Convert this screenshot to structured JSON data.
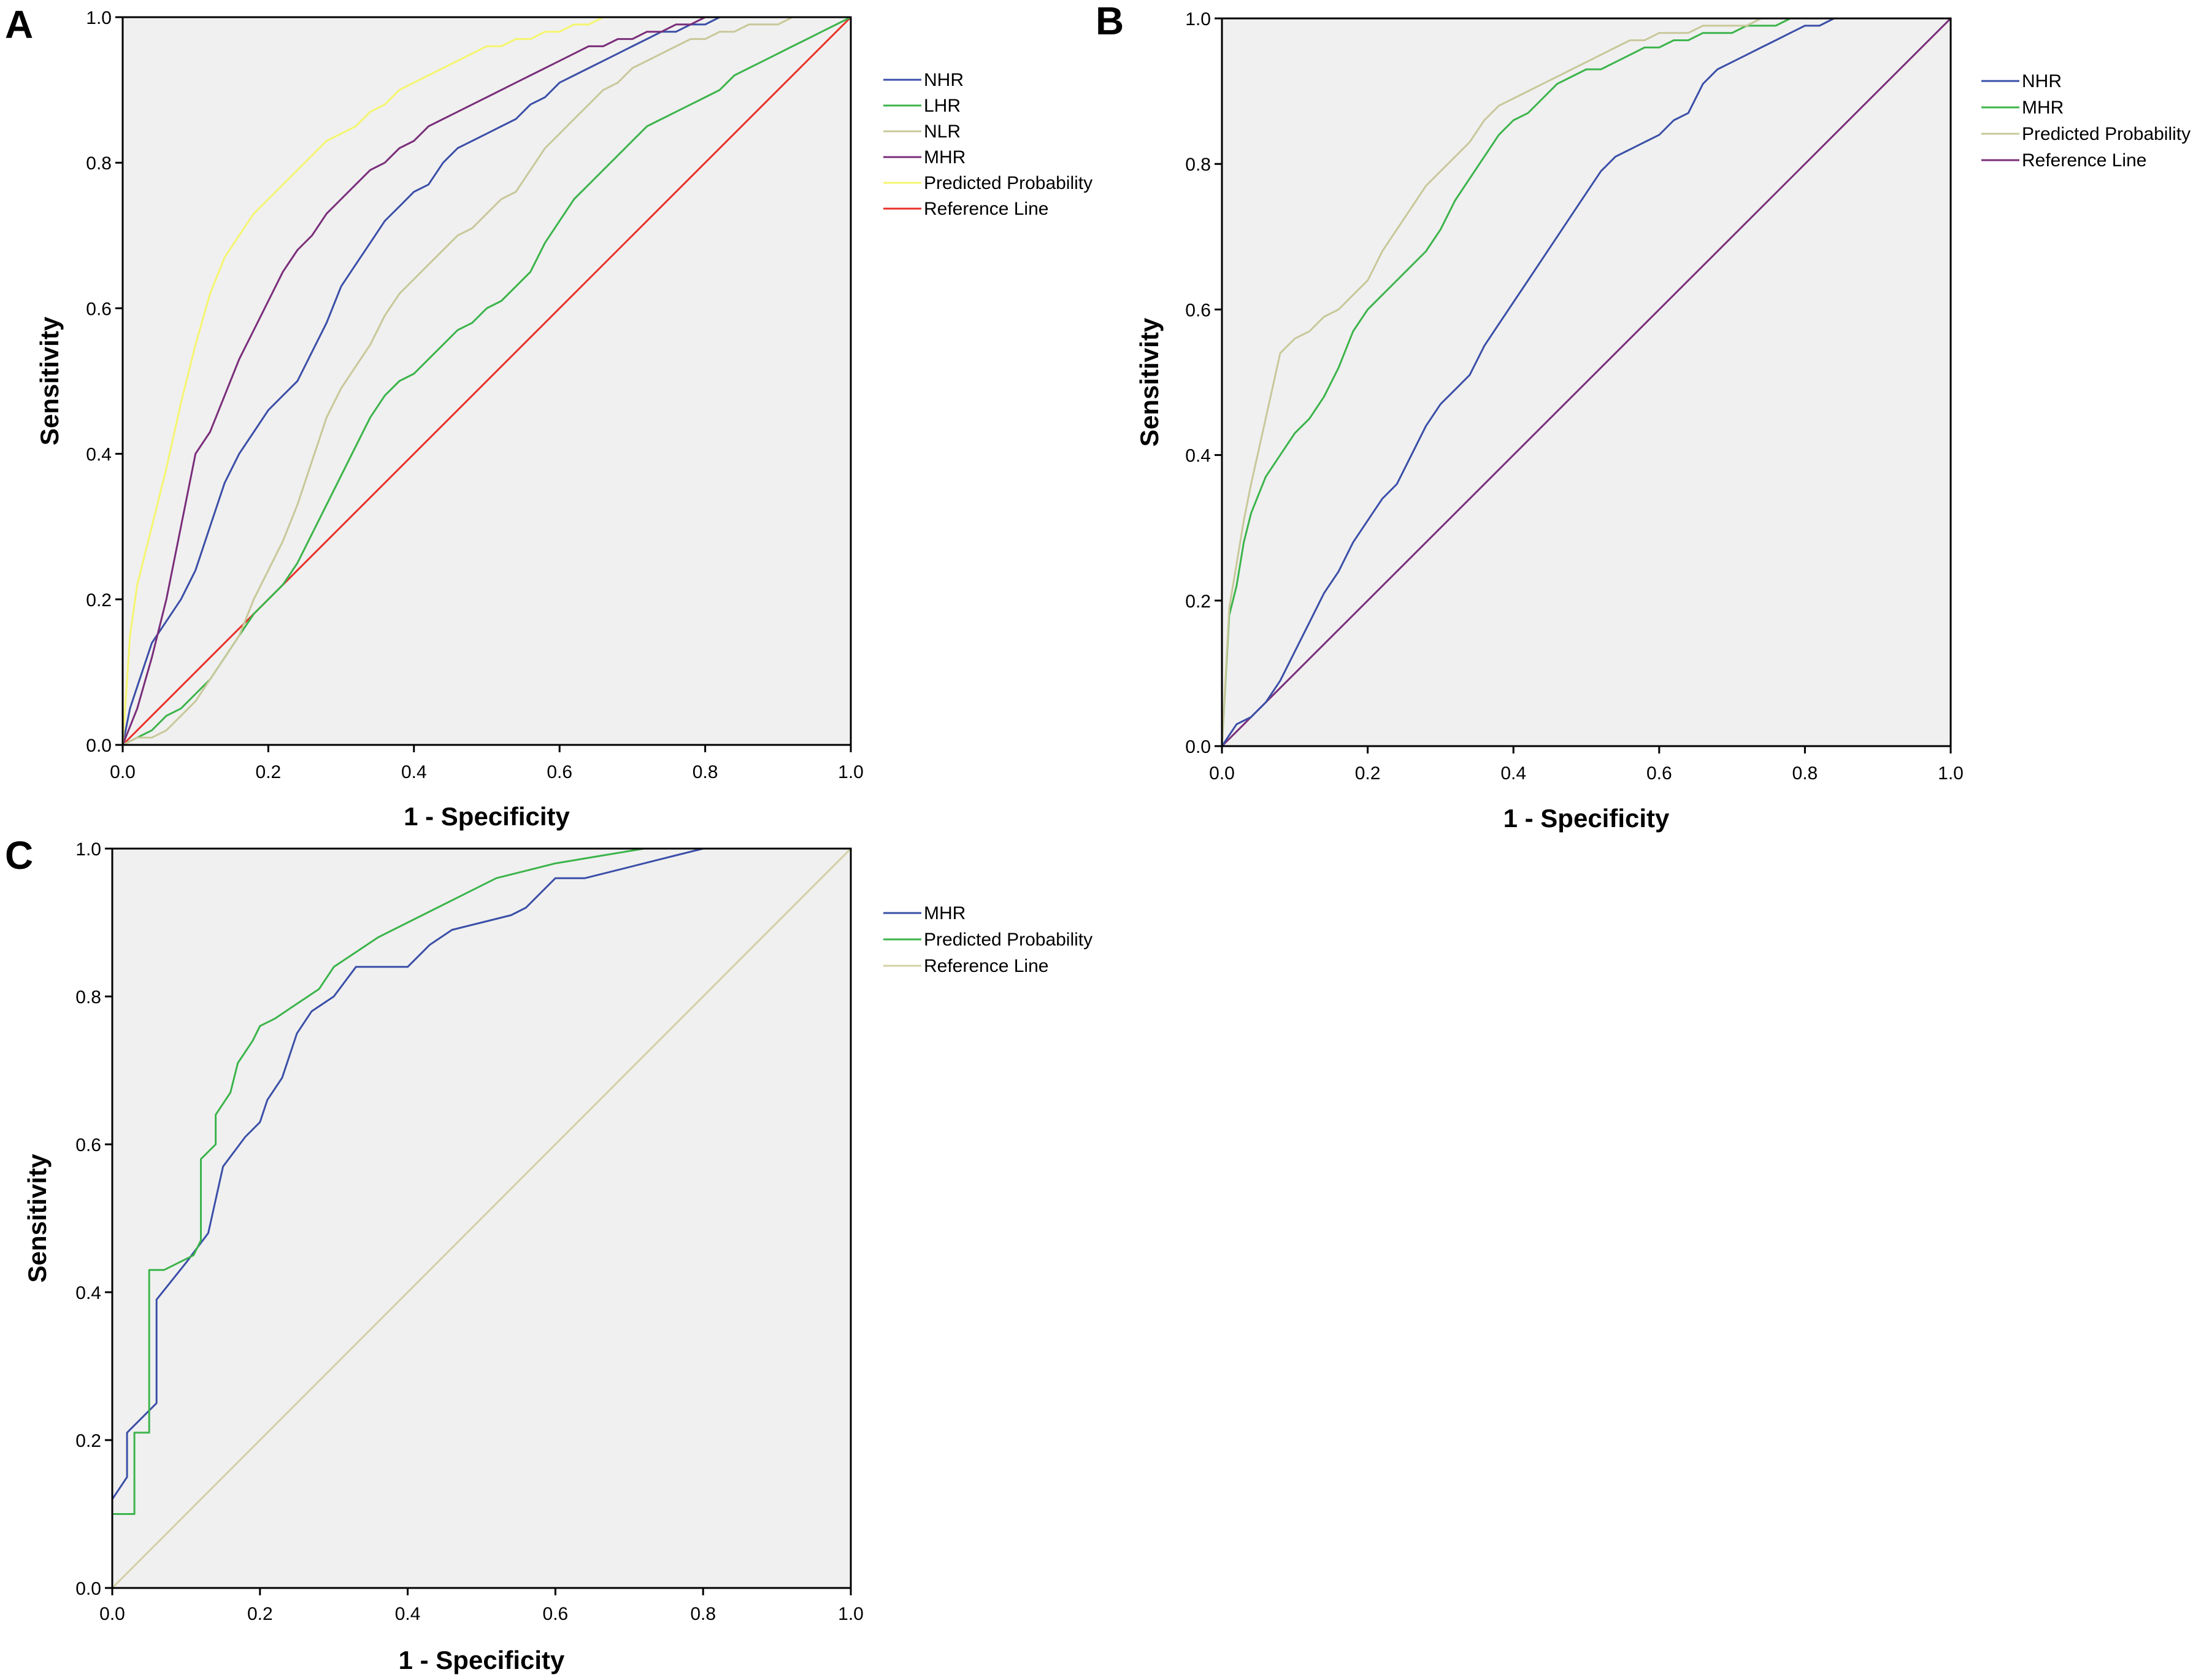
{
  "chart_data": [
    {
      "panel": "A",
      "type": "line",
      "xlabel": "1 - Specificity",
      "ylabel": "Sensitivity",
      "xlim": [
        0,
        1
      ],
      "ylim": [
        0,
        1
      ],
      "xticks": [
        "0.0",
        "0.2",
        "0.4",
        "0.6",
        "0.8",
        "1.0"
      ],
      "yticks": [
        "0.0",
        "0.2",
        "0.4",
        "0.6",
        "0.8",
        "1.0"
      ],
      "grid": false,
      "legend_position": "right",
      "series": [
        {
          "name": "NHR",
          "color": "#3b4fa8",
          "x": [
            0,
            0.01,
            0.02,
            0.04,
            0.06,
            0.08,
            0.1,
            0.12,
            0.14,
            0.16,
            0.18,
            0.2,
            0.22,
            0.24,
            0.26,
            0.28,
            0.3,
            0.32,
            0.34,
            0.36,
            0.38,
            0.4,
            0.42,
            0.44,
            0.46,
            0.48,
            0.5,
            0.52,
            0.54,
            0.56,
            0.58,
            0.6,
            0.62,
            0.64,
            0.66,
            0.68,
            0.7,
            0.72,
            0.74,
            0.76,
            0.78,
            0.8,
            0.82,
            1
          ],
          "y": [
            0,
            0.05,
            0.08,
            0.14,
            0.17,
            0.2,
            0.24,
            0.3,
            0.36,
            0.4,
            0.43,
            0.46,
            0.48,
            0.5,
            0.54,
            0.58,
            0.63,
            0.66,
            0.69,
            0.72,
            0.74,
            0.76,
            0.77,
            0.8,
            0.82,
            0.83,
            0.84,
            0.85,
            0.86,
            0.88,
            0.89,
            0.91,
            0.92,
            0.93,
            0.94,
            0.95,
            0.96,
            0.97,
            0.98,
            0.98,
            0.99,
            0.99,
            1,
            1
          ]
        },
        {
          "name": "LHR",
          "color": "#3cb44b",
          "x": [
            0,
            0.02,
            0.04,
            0.06,
            0.08,
            0.1,
            0.12,
            0.14,
            0.16,
            0.18,
            0.2,
            0.22,
            0.24,
            0.26,
            0.28,
            0.3,
            0.32,
            0.34,
            0.36,
            0.38,
            0.4,
            0.42,
            0.44,
            0.46,
            0.48,
            0.5,
            0.52,
            0.54,
            0.56,
            0.58,
            0.6,
            0.62,
            0.64,
            0.66,
            0.68,
            0.7,
            0.72,
            0.74,
            0.76,
            0.78,
            0.8,
            0.82,
            0.84,
            0.86,
            0.88,
            0.9,
            0.92,
            0.94,
            0.96,
            0.98,
            1
          ],
          "y": [
            0,
            0.01,
            0.02,
            0.04,
            0.05,
            0.07,
            0.09,
            0.12,
            0.15,
            0.18,
            0.2,
            0.22,
            0.25,
            0.29,
            0.33,
            0.37,
            0.41,
            0.45,
            0.48,
            0.5,
            0.51,
            0.53,
            0.55,
            0.57,
            0.58,
            0.6,
            0.61,
            0.63,
            0.65,
            0.69,
            0.72,
            0.75,
            0.77,
            0.79,
            0.81,
            0.83,
            0.85,
            0.86,
            0.87,
            0.88,
            0.89,
            0.9,
            0.92,
            0.93,
            0.94,
            0.95,
            0.96,
            0.97,
            0.98,
            0.99,
            1
          ]
        },
        {
          "name": "NLR",
          "color": "#c8c89a",
          "x": [
            0,
            0.02,
            0.04,
            0.06,
            0.08,
            0.1,
            0.12,
            0.14,
            0.16,
            0.18,
            0.2,
            0.22,
            0.24,
            0.26,
            0.28,
            0.3,
            0.32,
            0.34,
            0.36,
            0.38,
            0.4,
            0.42,
            0.44,
            0.46,
            0.48,
            0.5,
            0.52,
            0.54,
            0.56,
            0.58,
            0.6,
            0.62,
            0.64,
            0.66,
            0.68,
            0.7,
            0.72,
            0.74,
            0.76,
            0.78,
            0.8,
            0.82,
            0.84,
            0.86,
            0.88,
            0.9,
            0.92,
            0.94,
            0.96,
            0.98,
            1
          ],
          "y": [
            0,
            0.01,
            0.01,
            0.02,
            0.04,
            0.06,
            0.09,
            0.12,
            0.15,
            0.2,
            0.24,
            0.28,
            0.33,
            0.39,
            0.45,
            0.49,
            0.52,
            0.55,
            0.59,
            0.62,
            0.64,
            0.66,
            0.68,
            0.7,
            0.71,
            0.73,
            0.75,
            0.76,
            0.79,
            0.82,
            0.84,
            0.86,
            0.88,
            0.9,
            0.91,
            0.93,
            0.94,
            0.95,
            0.96,
            0.97,
            0.97,
            0.98,
            0.98,
            0.99,
            0.99,
            0.99,
            1,
            1,
            1,
            1,
            1
          ]
        },
        {
          "name": "MHR",
          "color": "#7a2e7a",
          "x": [
            0,
            0.02,
            0.04,
            0.06,
            0.08,
            0.1,
            0.12,
            0.14,
            0.16,
            0.18,
            0.2,
            0.22,
            0.24,
            0.26,
            0.28,
            0.3,
            0.32,
            0.34,
            0.36,
            0.38,
            0.4,
            0.42,
            0.44,
            0.46,
            0.48,
            0.5,
            0.52,
            0.54,
            0.56,
            0.58,
            0.6,
            0.62,
            0.64,
            0.66,
            0.68,
            0.7,
            0.72,
            0.74,
            0.76,
            0.78,
            0.8,
            1
          ],
          "y": [
            0,
            0.05,
            0.12,
            0.2,
            0.3,
            0.4,
            0.43,
            0.48,
            0.53,
            0.57,
            0.61,
            0.65,
            0.68,
            0.7,
            0.73,
            0.75,
            0.77,
            0.79,
            0.8,
            0.82,
            0.83,
            0.85,
            0.86,
            0.87,
            0.88,
            0.89,
            0.9,
            0.91,
            0.92,
            0.93,
            0.94,
            0.95,
            0.96,
            0.96,
            0.97,
            0.97,
            0.98,
            0.98,
            0.99,
            0.99,
            1,
            1
          ]
        },
        {
          "name": "Predicted Probability",
          "color": "#f5f570",
          "x": [
            0,
            0.01,
            0.02,
            0.04,
            0.06,
            0.08,
            0.1,
            0.12,
            0.14,
            0.16,
            0.18,
            0.2,
            0.22,
            0.24,
            0.26,
            0.28,
            0.3,
            0.32,
            0.34,
            0.36,
            0.38,
            0.4,
            0.42,
            0.44,
            0.46,
            0.48,
            0.5,
            0.52,
            0.54,
            0.56,
            0.58,
            0.6,
            0.62,
            0.64,
            0.66,
            0.68,
            0.7,
            1
          ],
          "y": [
            0,
            0.15,
            0.22,
            0.3,
            0.38,
            0.47,
            0.55,
            0.62,
            0.67,
            0.7,
            0.73,
            0.75,
            0.77,
            0.79,
            0.81,
            0.83,
            0.84,
            0.85,
            0.87,
            0.88,
            0.9,
            0.91,
            0.92,
            0.93,
            0.94,
            0.95,
            0.96,
            0.96,
            0.97,
            0.97,
            0.98,
            0.98,
            0.99,
            0.99,
            1,
            1,
            1,
            1
          ]
        },
        {
          "name": "Reference Line",
          "color": "#e8312a",
          "x": [
            0,
            1
          ],
          "y": [
            0,
            1
          ]
        }
      ]
    },
    {
      "panel": "B",
      "type": "line",
      "xlabel": "1 - Specificity",
      "ylabel": "Sensitivity",
      "xlim": [
        0,
        1
      ],
      "ylim": [
        0,
        1
      ],
      "xticks": [
        "0.0",
        "0.2",
        "0.4",
        "0.6",
        "0.8",
        "1.0"
      ],
      "yticks": [
        "0.0",
        "0.2",
        "0.4",
        "0.6",
        "0.8",
        "1.0"
      ],
      "grid": false,
      "legend_position": "right",
      "series": [
        {
          "name": "NHR",
          "color": "#3b4fa8",
          "x": [
            0,
            0.02,
            0.04,
            0.06,
            0.08,
            0.1,
            0.12,
            0.14,
            0.16,
            0.18,
            0.2,
            0.22,
            0.24,
            0.26,
            0.28,
            0.3,
            0.32,
            0.34,
            0.36,
            0.38,
            0.4,
            0.42,
            0.44,
            0.46,
            0.48,
            0.5,
            0.52,
            0.54,
            0.56,
            0.58,
            0.6,
            0.62,
            0.64,
            0.66,
            0.68,
            0.7,
            0.72,
            0.74,
            0.76,
            0.78,
            0.8,
            0.82,
            0.84,
            0.86,
            0.88,
            1
          ],
          "y": [
            0,
            0.03,
            0.04,
            0.06,
            0.09,
            0.13,
            0.17,
            0.21,
            0.24,
            0.28,
            0.31,
            0.34,
            0.36,
            0.4,
            0.44,
            0.47,
            0.49,
            0.51,
            0.55,
            0.58,
            0.61,
            0.64,
            0.67,
            0.7,
            0.73,
            0.76,
            0.79,
            0.81,
            0.82,
            0.83,
            0.84,
            0.86,
            0.87,
            0.91,
            0.93,
            0.94,
            0.95,
            0.96,
            0.97,
            0.98,
            0.99,
            0.99,
            1,
            1,
            1,
            1
          ]
        },
        {
          "name": "MHR",
          "color": "#3cb44b",
          "x": [
            0,
            0.01,
            0.02,
            0.03,
            0.04,
            0.06,
            0.08,
            0.1,
            0.12,
            0.14,
            0.16,
            0.18,
            0.2,
            0.22,
            0.24,
            0.26,
            0.28,
            0.3,
            0.32,
            0.34,
            0.36,
            0.38,
            0.4,
            0.42,
            0.44,
            0.46,
            0.48,
            0.5,
            0.52,
            0.54,
            0.56,
            0.58,
            0.6,
            0.62,
            0.64,
            0.66,
            0.68,
            0.7,
            0.72,
            0.74,
            0.76,
            0.78,
            0.8,
            0.82,
            1
          ],
          "y": [
            0,
            0.18,
            0.22,
            0.28,
            0.32,
            0.37,
            0.4,
            0.43,
            0.45,
            0.48,
            0.52,
            0.57,
            0.6,
            0.62,
            0.64,
            0.66,
            0.68,
            0.71,
            0.75,
            0.78,
            0.81,
            0.84,
            0.86,
            0.87,
            0.89,
            0.91,
            0.92,
            0.93,
            0.93,
            0.94,
            0.95,
            0.96,
            0.96,
            0.97,
            0.97,
            0.98,
            0.98,
            0.98,
            0.99,
            0.99,
            0.99,
            1,
            1,
            1,
            1
          ]
        },
        {
          "name": "Predicted Probability",
          "color": "#c8c89a",
          "x": [
            0,
            0.01,
            0.02,
            0.03,
            0.04,
            0.06,
            0.08,
            0.1,
            0.12,
            0.14,
            0.16,
            0.18,
            0.2,
            0.22,
            0.24,
            0.26,
            0.28,
            0.3,
            0.32,
            0.34,
            0.36,
            0.38,
            0.4,
            0.42,
            0.44,
            0.46,
            0.48,
            0.5,
            0.52,
            0.54,
            0.56,
            0.58,
            0.6,
            0.62,
            0.64,
            0.66,
            0.68,
            0.7,
            0.72,
            0.74,
            0.76,
            0.78,
            0.8,
            1
          ],
          "y": [
            0,
            0.19,
            0.25,
            0.31,
            0.36,
            0.45,
            0.54,
            0.56,
            0.57,
            0.59,
            0.6,
            0.62,
            0.64,
            0.68,
            0.71,
            0.74,
            0.77,
            0.79,
            0.81,
            0.83,
            0.86,
            0.88,
            0.89,
            0.9,
            0.91,
            0.92,
            0.93,
            0.94,
            0.95,
            0.96,
            0.97,
            0.97,
            0.98,
            0.98,
            0.98,
            0.99,
            0.99,
            0.99,
            0.99,
            1,
            1,
            1,
            1,
            1
          ]
        },
        {
          "name": "Reference Line",
          "color": "#7a2e7a",
          "x": [
            0,
            1
          ],
          "y": [
            0,
            1
          ]
        }
      ]
    },
    {
      "panel": "C",
      "type": "line",
      "xlabel": "1 - Specificity",
      "ylabel": "Sensitivity",
      "xlim": [
        0,
        1
      ],
      "ylim": [
        0,
        1
      ],
      "xticks": [
        "0.0",
        "0.2",
        "0.4",
        "0.6",
        "0.8",
        "1.0"
      ],
      "yticks": [
        "0.0",
        "0.2",
        "0.4",
        "0.6",
        "0.8",
        "1.0"
      ],
      "grid": false,
      "legend_position": "right",
      "series": [
        {
          "name": "MHR",
          "color": "#3b4fa8",
          "x": [
            0,
            0,
            0.02,
            0.02,
            0.06,
            0.06,
            0.1,
            0.13,
            0.15,
            0.18,
            0.2,
            0.21,
            0.23,
            0.25,
            0.27,
            0.3,
            0.33,
            0.36,
            0.4,
            0.43,
            0.46,
            0.5,
            0.54,
            0.56,
            0.58,
            0.6,
            0.64,
            0.68,
            0.72,
            0.76,
            0.8,
            0.84,
            1
          ],
          "y": [
            0,
            0.12,
            0.15,
            0.21,
            0.25,
            0.39,
            0.44,
            0.48,
            0.57,
            0.61,
            0.63,
            0.66,
            0.69,
            0.75,
            0.78,
            0.8,
            0.84,
            0.84,
            0.84,
            0.87,
            0.89,
            0.9,
            0.91,
            0.92,
            0.94,
            0.96,
            0.96,
            0.97,
            0.98,
            0.99,
            1,
            1,
            1
          ]
        },
        {
          "name": "Predicted Probability",
          "color": "#3cb44b",
          "x": [
            0,
            0,
            0.03,
            0.03,
            0.05,
            0.05,
            0.07,
            0.09,
            0.11,
            0.12,
            0.12,
            0.14,
            0.14,
            0.16,
            0.17,
            0.19,
            0.2,
            0.22,
            0.25,
            0.28,
            0.3,
            0.33,
            0.36,
            0.4,
            0.44,
            0.48,
            0.52,
            0.56,
            0.6,
            0.66,
            0.72,
            0.8,
            1
          ],
          "y": [
            0,
            0.1,
            0.1,
            0.21,
            0.21,
            0.43,
            0.43,
            0.44,
            0.45,
            0.47,
            0.58,
            0.6,
            0.64,
            0.67,
            0.71,
            0.74,
            0.76,
            0.77,
            0.79,
            0.81,
            0.84,
            0.86,
            0.88,
            0.9,
            0.92,
            0.94,
            0.96,
            0.97,
            0.98,
            0.99,
            1,
            1,
            1
          ]
        },
        {
          "name": "Reference Line",
          "color": "#d4d0a4",
          "x": [
            0,
            1
          ],
          "y": [
            0,
            1
          ]
        }
      ]
    }
  ]
}
